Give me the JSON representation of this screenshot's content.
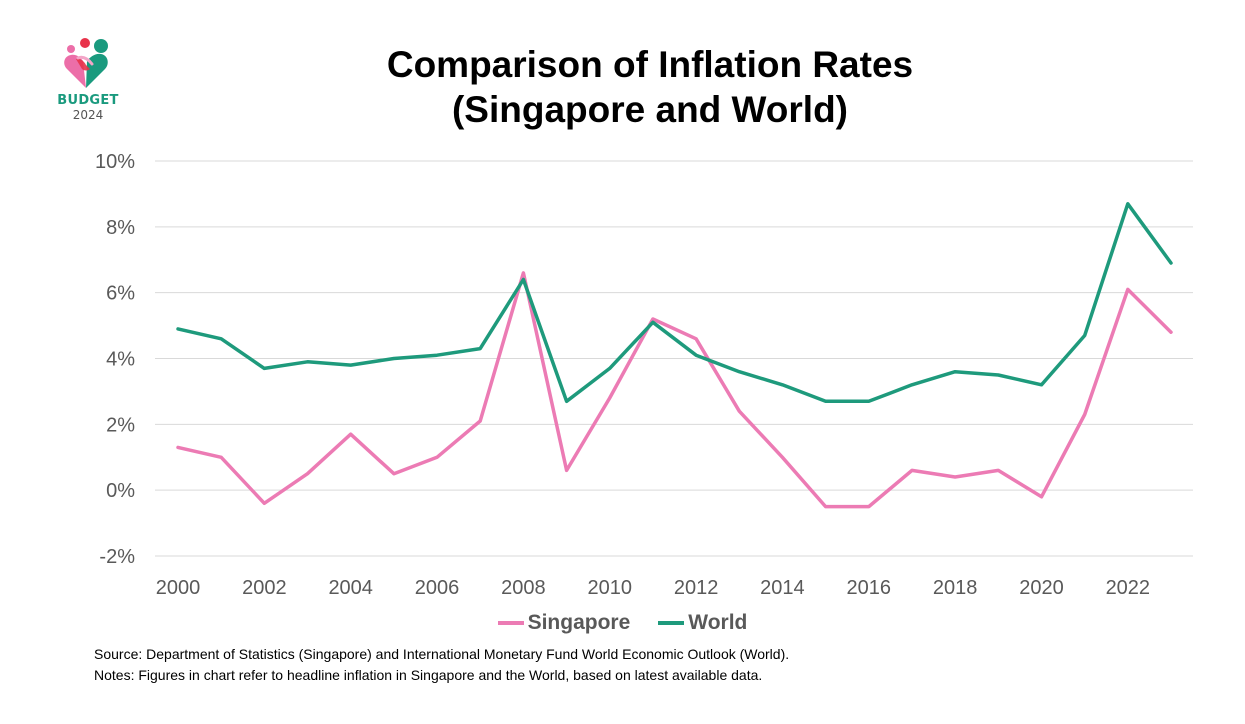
{
  "logo": {
    "icon": "heart-people-icon",
    "word": "BUDGET",
    "year": "2024",
    "colors": {
      "pink": "#ec6ea8",
      "green": "#1a9a7e",
      "red": "#e8334a"
    }
  },
  "chart_data": {
    "type": "line",
    "title": "Comparison of Inflation Rates",
    "subtitle": "(Singapore and World)",
    "x": [
      2000,
      2001,
      2002,
      2003,
      2004,
      2005,
      2006,
      2007,
      2008,
      2009,
      2010,
      2011,
      2012,
      2013,
      2014,
      2015,
      2016,
      2017,
      2018,
      2019,
      2020,
      2021,
      2022,
      2023
    ],
    "x_tick_labels": [
      "2000",
      "2002",
      "2004",
      "2006",
      "2008",
      "2010",
      "2012",
      "2014",
      "2016",
      "2018",
      "2020",
      "2022"
    ],
    "x_ticks": [
      2000,
      2002,
      2004,
      2006,
      2008,
      2010,
      2012,
      2014,
      2016,
      2018,
      2020,
      2022
    ],
    "y_ticks": [
      -2,
      0,
      2,
      4,
      6,
      8,
      10
    ],
    "y_tick_labels": [
      "-2%",
      "0%",
      "2%",
      "4%",
      "6%",
      "8%",
      "10%"
    ],
    "ylim": [
      -2,
      10
    ],
    "xlim": [
      2000,
      2023
    ],
    "xlabel": "",
    "ylabel": "",
    "grid": "horizontal",
    "legend_position": "bottom",
    "series": [
      {
        "name": "Singapore",
        "color": "#ec7bb4",
        "values": [
          1.3,
          1.0,
          -0.4,
          0.5,
          1.7,
          0.5,
          1.0,
          2.1,
          6.6,
          0.6,
          2.8,
          5.2,
          4.6,
          2.4,
          1.0,
          -0.5,
          -0.5,
          0.6,
          0.4,
          0.6,
          -0.2,
          2.3,
          6.1,
          4.8
        ]
      },
      {
        "name": "World",
        "color": "#1e9a7c",
        "values": [
          4.9,
          4.6,
          3.7,
          3.9,
          3.8,
          4.0,
          4.1,
          4.3,
          6.4,
          2.7,
          3.7,
          5.1,
          4.1,
          3.6,
          3.2,
          2.7,
          2.7,
          3.2,
          3.6,
          3.5,
          3.2,
          4.7,
          8.7,
          6.9
        ]
      }
    ]
  },
  "notes": {
    "source": "Source: Department of Statistics (Singapore) and International Monetary Fund World Economic Outlook (World).",
    "notes": "Notes: Figures in chart refer to headline inflation in Singapore and the World, based on latest available data."
  }
}
